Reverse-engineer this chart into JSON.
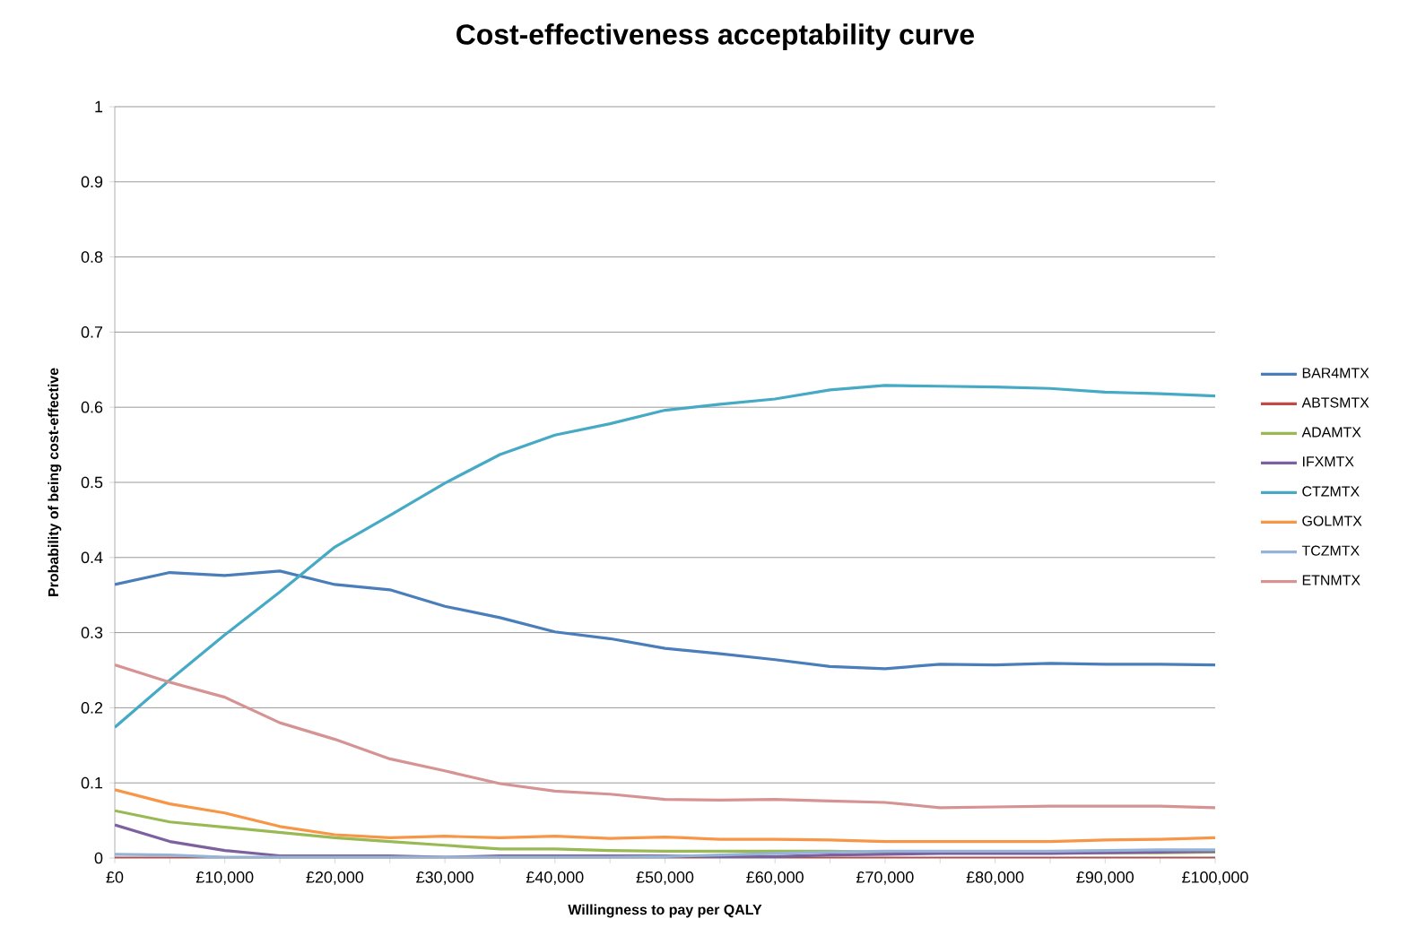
{
  "chart_data": {
    "type": "line",
    "title": "Cost-effectiveness acceptability curve",
    "xlabel": "Willingness to pay per QALY",
    "ylabel": "Probability of being cost-effective",
    "x": [
      0,
      5000,
      10000,
      15000,
      20000,
      25000,
      30000,
      35000,
      40000,
      45000,
      50000,
      55000,
      60000,
      65000,
      70000,
      75000,
      80000,
      85000,
      90000,
      95000,
      100000
    ],
    "xlim": [
      0,
      100000
    ],
    "xticks": [
      {
        "value": 0,
        "label": "£0"
      },
      {
        "value": 10000,
        "label": "£10,000"
      },
      {
        "value": 20000,
        "label": "£20,000"
      },
      {
        "value": 30000,
        "label": "£30,000"
      },
      {
        "value": 40000,
        "label": "£40,000"
      },
      {
        "value": 50000,
        "label": "£50,000"
      },
      {
        "value": 60000,
        "label": "£60,000"
      },
      {
        "value": 70000,
        "label": "£70,000"
      },
      {
        "value": 80000,
        "label": "£80,000"
      },
      {
        "value": 90000,
        "label": "£90,000"
      },
      {
        "value": 100000,
        "label": "£100,000"
      }
    ],
    "ylim": [
      0,
      1
    ],
    "yticks": [
      0,
      0.1,
      0.2,
      0.3,
      0.4,
      0.5,
      0.6,
      0.7,
      0.8,
      0.9,
      1
    ],
    "grid": "y",
    "legend": "right",
    "marker": "none",
    "line_style": "solid",
    "series": [
      {
        "name": "BAR4MTX",
        "color": "#4a7ebb",
        "values": [
          0.364,
          0.38,
          0.376,
          0.382,
          0.364,
          0.357,
          0.335,
          0.32,
          0.301,
          0.292,
          0.279,
          0.272,
          0.264,
          0.255,
          0.252,
          0.258,
          0.257,
          0.259,
          0.258,
          0.258,
          0.257
        ]
      },
      {
        "name": "ABTSMTX",
        "color": "#be4b48",
        "values": [
          0,
          0,
          0,
          0,
          0,
          0,
          0,
          0,
          0,
          0,
          0,
          0,
          0,
          0,
          0,
          0,
          0,
          0,
          0,
          0,
          0
        ]
      },
      {
        "name": "ADAMTX",
        "color": "#98b954",
        "values": [
          0.063,
          0.048,
          0.041,
          0.034,
          0.027,
          0.022,
          0.017,
          0.012,
          0.012,
          0.01,
          0.009,
          0.009,
          0.009,
          0.009,
          0.008,
          0.007,
          0.007,
          0.007,
          0.007,
          0.007,
          0.008
        ]
      },
      {
        "name": "IFXMTX",
        "color": "#7d60a0",
        "values": [
          0.044,
          0.022,
          0.01,
          0.003,
          0.003,
          0.003,
          0.001,
          0.003,
          0.003,
          0.003,
          0.003,
          0.002,
          0.002,
          0.004,
          0.005,
          0.006,
          0.006,
          0.006,
          0.007,
          0.008,
          0.009
        ]
      },
      {
        "name": "CTZMTX",
        "color": "#46aac5",
        "values": [
          0.174,
          0.237,
          0.297,
          0.354,
          0.414,
          0.456,
          0.499,
          0.537,
          0.563,
          0.578,
          0.596,
          0.604,
          0.611,
          0.623,
          0.629,
          0.628,
          0.627,
          0.625,
          0.62,
          0.618,
          0.615
        ]
      },
      {
        "name": "GOLMTX",
        "color": "#f79646",
        "values": [
          0.091,
          0.072,
          0.06,
          0.042,
          0.031,
          0.027,
          0.029,
          0.027,
          0.029,
          0.026,
          0.028,
          0.025,
          0.025,
          0.024,
          0.022,
          0.022,
          0.022,
          0.022,
          0.024,
          0.025,
          0.027
        ]
      },
      {
        "name": "TCZMTX",
        "color": "#94b3d6",
        "values": [
          0.005,
          0.004,
          0.001,
          0.001,
          0.001,
          0.001,
          0.001,
          0.001,
          0.001,
          0.001,
          0.002,
          0.004,
          0.006,
          0.008,
          0.009,
          0.009,
          0.009,
          0.009,
          0.01,
          0.011,
          0.011
        ]
      },
      {
        "name": "ETNMTX",
        "color": "#d69394",
        "values": [
          0.257,
          0.234,
          0.214,
          0.18,
          0.158,
          0.132,
          0.116,
          0.099,
          0.089,
          0.085,
          0.078,
          0.077,
          0.078,
          0.076,
          0.074,
          0.067,
          0.068,
          0.069,
          0.069,
          0.069,
          0.067
        ]
      }
    ]
  }
}
